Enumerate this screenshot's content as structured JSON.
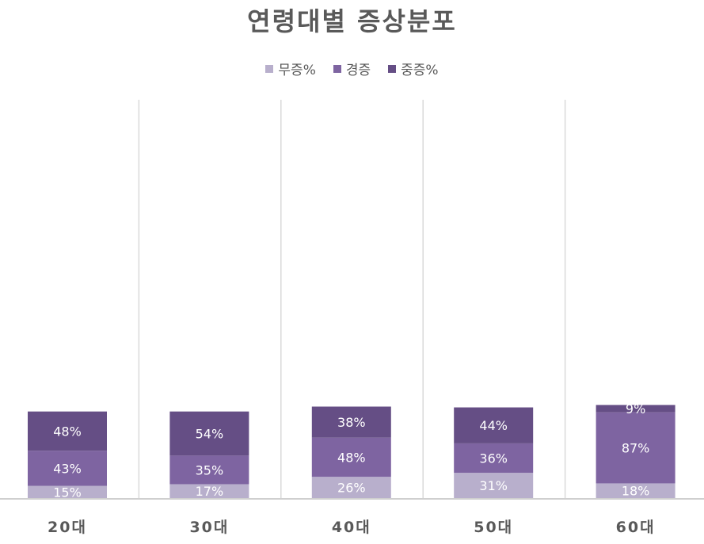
{
  "chart_data": {
    "type": "bar",
    "stacked": true,
    "title": "연령대별 증상분포",
    "categories": [
      "20대",
      "30대",
      "40대",
      "50대",
      "60대"
    ],
    "series": [
      {
        "name": "무증%",
        "color": "#b8afcc",
        "values": [
          15,
          17,
          26,
          31,
          18
        ],
        "labels": [
          "15%",
          "17%",
          "26%",
          "31%",
          "18%"
        ]
      },
      {
        "name": "경증",
        "color": "#7e64a1",
        "values": [
          43,
          35,
          48,
          36,
          87
        ],
        "labels": [
          "43%",
          "35%",
          "48%",
          "36%",
          "87%"
        ]
      },
      {
        "name": "중증%",
        "color": "#654e85",
        "values": [
          48,
          54,
          38,
          44,
          9
        ],
        "labels": [
          "48%",
          "54%",
          "38%",
          "44%",
          "9%"
        ]
      }
    ],
    "legend_position": "top",
    "grid": false
  }
}
